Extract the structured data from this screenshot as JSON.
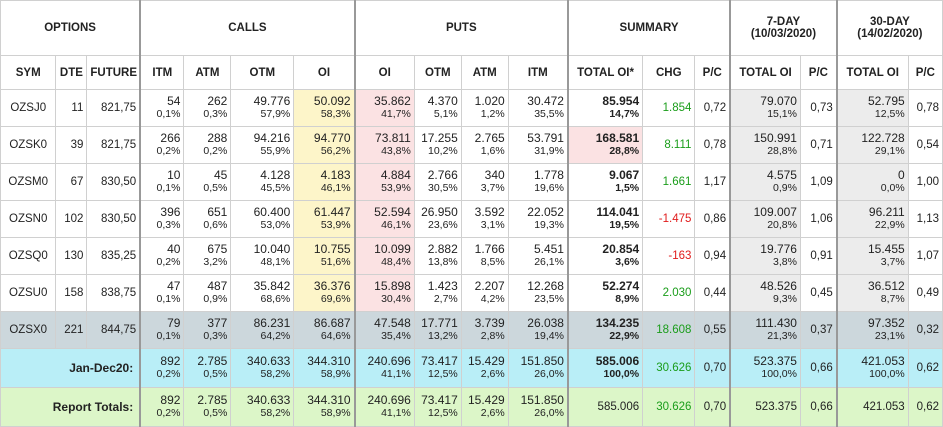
{
  "groups": {
    "options": "OPTIONS",
    "calls": "CALLS",
    "puts": "PUTS",
    "summary": "SUMMARY",
    "seven_day": "7-DAY",
    "seven_day_date": "(10/03/2020)",
    "thirty_day": "30-DAY",
    "thirty_day_date": "(14/02/2020)"
  },
  "columns": {
    "sym": "SYM",
    "dte": "DTE",
    "future": "FUTURE",
    "c_itm": "ITM",
    "c_atm": "ATM",
    "c_otm": "OTM",
    "c_oi": "OI",
    "p_oi": "OI",
    "p_otm": "OTM",
    "p_atm": "ATM",
    "p_itm": "ITM",
    "total_oi": "TOTAL OI*",
    "chg": "CHG",
    "pc": "P/C",
    "d7_total": "TOTAL OI",
    "d7_pc": "P/C",
    "d30_total": "TOTAL OI",
    "d30_pc": "P/C"
  },
  "rows": [
    {
      "sym": "OZSJ0",
      "dte": "11",
      "future": "821,75",
      "c_itm": [
        "54",
        "0,1%"
      ],
      "c_atm": [
        "262",
        "0,3%"
      ],
      "c_otm": [
        "49.776",
        "57,9%"
      ],
      "c_oi": [
        "50.092",
        "58,3%"
      ],
      "p_oi": [
        "35.862",
        "41,7%"
      ],
      "p_otm": [
        "4.370",
        "5,1%"
      ],
      "p_atm": [
        "1.020",
        "1,2%"
      ],
      "p_itm": [
        "30.472",
        "35,5%"
      ],
      "total": [
        "85.954",
        "14,7%"
      ],
      "chg": "1.854",
      "chg_sign": "pos",
      "pc": "0,72",
      "d7": [
        "79.070",
        "15,1%"
      ],
      "d7_pc": "0,73",
      "d30": [
        "52.795",
        "12,5%"
      ],
      "d30_pc": "0,78"
    },
    {
      "sym": "OZSK0",
      "dte": "39",
      "future": "821,75",
      "c_itm": [
        "266",
        "0,2%"
      ],
      "c_atm": [
        "288",
        "0,2%"
      ],
      "c_otm": [
        "94.216",
        "55,9%"
      ],
      "c_oi": [
        "94.770",
        "56,2%"
      ],
      "p_oi": [
        "73.811",
        "43,8%"
      ],
      "p_otm": [
        "17.255",
        "10,2%"
      ],
      "p_atm": [
        "2.765",
        "1,6%"
      ],
      "p_itm": [
        "53.791",
        "31,9%"
      ],
      "total": [
        "168.581",
        "28,8%"
      ],
      "chg": "8.111",
      "chg_sign": "pos",
      "pc": "0,78",
      "d7": [
        "150.991",
        "28,8%"
      ],
      "d7_pc": "0,71",
      "d30": [
        "122.728",
        "29,1%"
      ],
      "d30_pc": "0,54"
    },
    {
      "sym": "OZSM0",
      "dte": "67",
      "future": "830,50",
      "c_itm": [
        "10",
        "0,1%"
      ],
      "c_atm": [
        "45",
        "0,5%"
      ],
      "c_otm": [
        "4.128",
        "45,5%"
      ],
      "c_oi": [
        "4.183",
        "46,1%"
      ],
      "p_oi": [
        "4.884",
        "53,9%"
      ],
      "p_otm": [
        "2.766",
        "30,5%"
      ],
      "p_atm": [
        "340",
        "3,7%"
      ],
      "p_itm": [
        "1.778",
        "19,6%"
      ],
      "total": [
        "9.067",
        "1,5%"
      ],
      "chg": "1.661",
      "chg_sign": "pos",
      "pc": "1,17",
      "d7": [
        "4.575",
        "0,9%"
      ],
      "d7_pc": "1,09",
      "d30": [
        "0",
        "0,0%"
      ],
      "d30_pc": "1,00"
    },
    {
      "sym": "OZSN0",
      "dte": "102",
      "future": "830,50",
      "c_itm": [
        "396",
        "0,3%"
      ],
      "c_atm": [
        "651",
        "0,6%"
      ],
      "c_otm": [
        "60.400",
        "53,0%"
      ],
      "c_oi": [
        "61.447",
        "53,9%"
      ],
      "p_oi": [
        "52.594",
        "46,1%"
      ],
      "p_otm": [
        "26.950",
        "23,6%"
      ],
      "p_atm": [
        "3.592",
        "3,1%"
      ],
      "p_itm": [
        "22.052",
        "19,3%"
      ],
      "total": [
        "114.041",
        "19,5%"
      ],
      "chg": "-1.475",
      "chg_sign": "neg",
      "pc": "0,86",
      "d7": [
        "109.007",
        "20,8%"
      ],
      "d7_pc": "1,06",
      "d30": [
        "96.211",
        "22,9%"
      ],
      "d30_pc": "1,13"
    },
    {
      "sym": "OZSQ0",
      "dte": "130",
      "future": "835,25",
      "c_itm": [
        "40",
        "0,2%"
      ],
      "c_atm": [
        "675",
        "3,2%"
      ],
      "c_otm": [
        "10.040",
        "48,1%"
      ],
      "c_oi": [
        "10.755",
        "51,6%"
      ],
      "p_oi": [
        "10.099",
        "48,4%"
      ],
      "p_otm": [
        "2.882",
        "13,8%"
      ],
      "p_atm": [
        "1.766",
        "8,5%"
      ],
      "p_itm": [
        "5.451",
        "26,1%"
      ],
      "total": [
        "20.854",
        "3,6%"
      ],
      "chg": "-163",
      "chg_sign": "neg",
      "pc": "0,94",
      "d7": [
        "19.776",
        "3,8%"
      ],
      "d7_pc": "0,91",
      "d30": [
        "15.455",
        "3,7%"
      ],
      "d30_pc": "1,07"
    },
    {
      "sym": "OZSU0",
      "dte": "158",
      "future": "838,75",
      "c_itm": [
        "47",
        "0,1%"
      ],
      "c_atm": [
        "487",
        "0,9%"
      ],
      "c_otm": [
        "35.842",
        "68,6%"
      ],
      "c_oi": [
        "36.376",
        "69,6%"
      ],
      "p_oi": [
        "15.898",
        "30,4%"
      ],
      "p_otm": [
        "1.423",
        "2,7%"
      ],
      "p_atm": [
        "2.207",
        "4,2%"
      ],
      "p_itm": [
        "12.268",
        "23,5%"
      ],
      "total": [
        "52.274",
        "8,9%"
      ],
      "chg": "2.030",
      "chg_sign": "pos",
      "pc": "0,44",
      "d7": [
        "48.526",
        "9,3%"
      ],
      "d7_pc": "0,45",
      "d30": [
        "36.512",
        "8,7%"
      ],
      "d30_pc": "0,49"
    },
    {
      "sym": "OZSX0",
      "dte": "221",
      "future": "844,75",
      "c_itm": [
        "79",
        "0,1%"
      ],
      "c_atm": [
        "377",
        "0,3%"
      ],
      "c_otm": [
        "86.231",
        "64,2%"
      ],
      "c_oi": [
        "86.687",
        "64,6%"
      ],
      "p_oi": [
        "47.548",
        "35,4%"
      ],
      "p_otm": [
        "17.771",
        "13,2%"
      ],
      "p_atm": [
        "3.739",
        "2,8%"
      ],
      "p_itm": [
        "26.038",
        "19,4%"
      ],
      "total": [
        "134.235",
        "22,9%"
      ],
      "chg": "18.608",
      "chg_sign": "pos",
      "pc": "0,55",
      "d7": [
        "111.430",
        "21,3%"
      ],
      "d7_pc": "0,37",
      "d30": [
        "97.352",
        "23,1%"
      ],
      "d30_pc": "0,32"
    }
  ],
  "jan_dec": {
    "label": "Jan-Dec20:",
    "c_itm": [
      "892",
      "0,2%"
    ],
    "c_atm": [
      "2.785",
      "0,5%"
    ],
    "c_otm": [
      "340.633",
      "58,2%"
    ],
    "c_oi": [
      "344.310",
      "58,9%"
    ],
    "p_oi": [
      "240.696",
      "41,1%"
    ],
    "p_otm": [
      "73.417",
      "12,5%"
    ],
    "p_atm": [
      "15.429",
      "2,6%"
    ],
    "p_itm": [
      "151.850",
      "26,0%"
    ],
    "total": [
      "585.006",
      "100,0%"
    ],
    "chg": "30.626",
    "pc": "0,70",
    "d7": [
      "523.375",
      "100,0%"
    ],
    "d7_pc": "0,66",
    "d30": [
      "421.053",
      "100,0%"
    ],
    "d30_pc": "0,62"
  },
  "report": {
    "label": "Report Totals:",
    "c_itm": [
      "892",
      "0,2%"
    ],
    "c_atm": [
      "2.785",
      "0,5%"
    ],
    "c_otm": [
      "340.633",
      "58,2%"
    ],
    "c_oi": [
      "344.310",
      "58,9%"
    ],
    "p_oi": [
      "240.696",
      "41,1%"
    ],
    "p_otm": [
      "73.417",
      "12,5%"
    ],
    "p_atm": [
      "15.429",
      "2,6%"
    ],
    "p_itm": [
      "151.850",
      "26,0%"
    ],
    "total": "585.006",
    "chg": "30.626",
    "pc": "0,70",
    "d7": "523.375",
    "d7_pc": "0,66",
    "d30": "421.053",
    "d30_pc": "0,62"
  },
  "colors": {
    "call_oi": "#fdf5c9",
    "put_oi": "#fbe2e3",
    "selected_row": "#ccd7dc",
    "jan_dec_row": "#b9eef7",
    "report_row": "#dcf6c8",
    "positive": "#1a9d1a",
    "negative": "#e01b1b"
  }
}
